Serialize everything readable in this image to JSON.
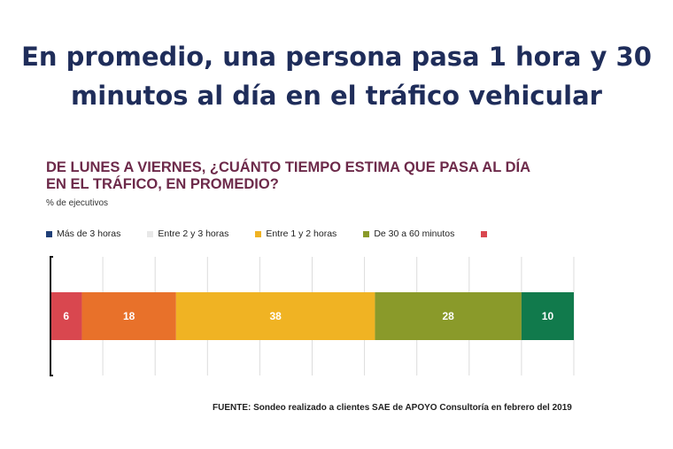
{
  "headline": {
    "line1": "En promedio, una persona pasa 1 hora y 30",
    "line2": "minutos al día en el tráfico vehicular"
  },
  "chart_data": {
    "type": "bar",
    "orientation": "horizontal-stacked",
    "title_line1": "DE LUNES A VIERNES, ¿CUÁNTO TIEMPO ESTIMA QUE PASA AL DÍA",
    "title_line2": "EN EL TRÁFICO, EN PROMEDIO?",
    "unit_label": "% de ejecutivos",
    "xlim": [
      0,
      100
    ],
    "grid": true,
    "legend_position": "top",
    "legend": [
      {
        "label": "Más de 3 horas",
        "color": "#1f3f77"
      },
      {
        "label": "Entre 2 y 3 horas",
        "color": "#e8e8e8"
      },
      {
        "label": "Entre 1 y 2 horas",
        "color": "#f0b323"
      },
      {
        "label": "De 30 a 60 minutos",
        "color": "#8a9a2a"
      },
      {
        "label": "",
        "color": "#d9474f"
      }
    ],
    "series": [
      {
        "value": 6,
        "color": "#d9474f"
      },
      {
        "value": 18,
        "color": "#e8712a"
      },
      {
        "value": 38,
        "color": "#f0b323"
      },
      {
        "value": 28,
        "color": "#8a9a2a"
      },
      {
        "value": 10,
        "color": "#117a4c"
      }
    ],
    "source": "FUENTE: Sondeo realizado a clientes SAE de APOYO Consultoría en febrero del 2019"
  }
}
